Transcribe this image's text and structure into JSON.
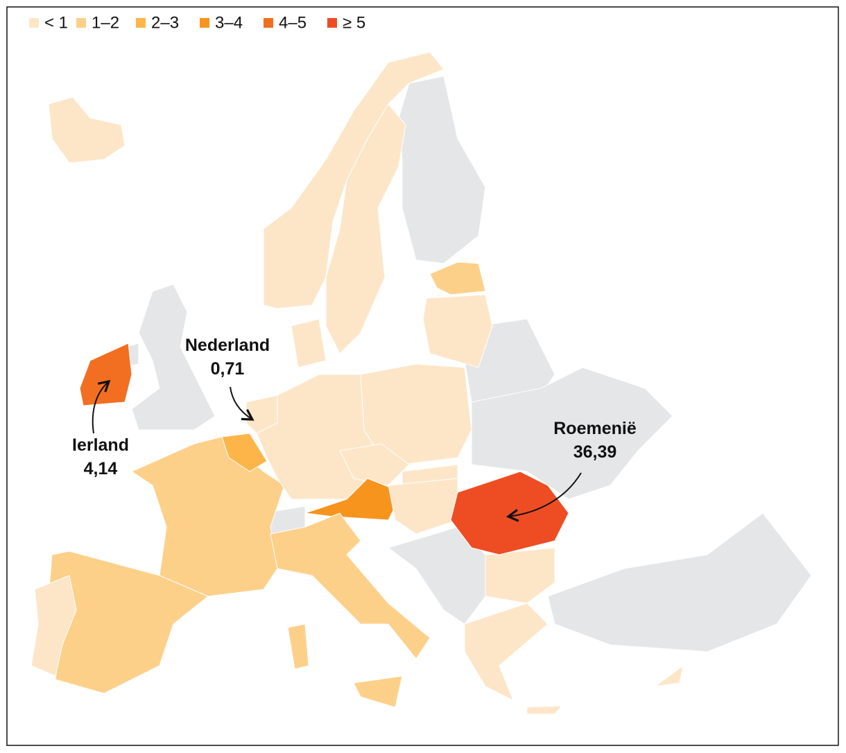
{
  "legend": [
    {
      "label": "< 1",
      "color": "#fde6c8"
    },
    {
      "label": "1–2",
      "color": "#fdd08a"
    },
    {
      "label": "2–3",
      "color": "#fdb54a"
    },
    {
      "label": "3–4",
      "color": "#f7941d"
    },
    {
      "label": "4–5",
      "color": "#f26f21"
    },
    {
      "label": "≥ 5",
      "color": "#ee4d23"
    }
  ],
  "annotations": [
    {
      "name": "Ierland",
      "value": 4.14,
      "value_label": "4,14"
    },
    {
      "name": "Nederland",
      "value": 0.71,
      "value_label": "0,71"
    },
    {
      "name": "Roemenië",
      "value": 36.39,
      "value_label": "36,39"
    }
  ]
}
